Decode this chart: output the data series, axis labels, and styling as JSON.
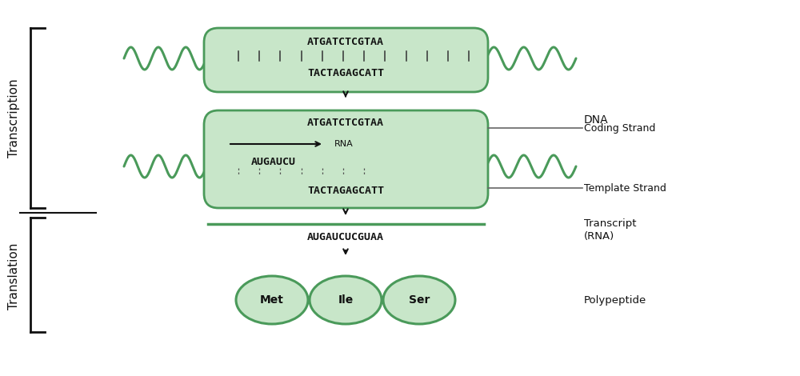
{
  "bg_color": "#ffffff",
  "green_color": "#4a9a5a",
  "green_fill": "#c8e6c9",
  "gray_color": "#666666",
  "black_color": "#111111",
  "transcription_label": "Transcription",
  "translation_label": "Translation",
  "dna_label": "DNA",
  "coding_strand_label": "Coding Strand",
  "template_strand_label": "Template Strand",
  "transcript_label": "Transcript\n(RNA)",
  "polypeptide_label": "Polypeptide",
  "coding_strand_seq": "ATGATCTCGTAA",
  "template_strand_seq": "TACTAGAGCATT",
  "rna_seq_partial": "AUGAUCU",
  "transcript_seq": "AUGAUCUCGUAA",
  "amino_acids": [
    "Met",
    "Ile",
    "Ser"
  ],
  "rna_label": "RNA"
}
